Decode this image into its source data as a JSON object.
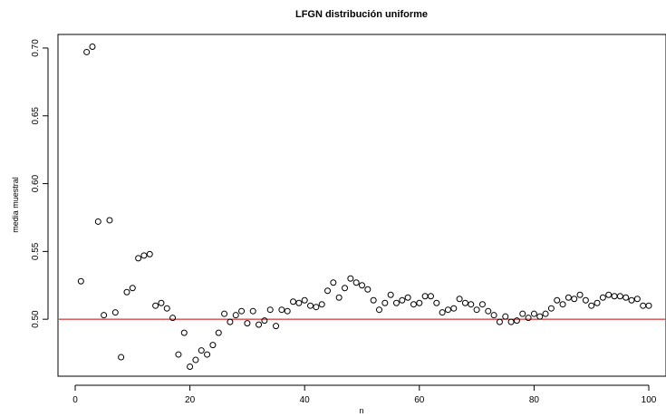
{
  "chart_data": {
    "type": "scatter",
    "title": "LFGN distribución uniforme",
    "xlabel": "n",
    "ylabel": "media muestral",
    "xlim": [
      -3,
      103
    ],
    "ylim": [
      0.458,
      0.71
    ],
    "x_ticks": [
      0,
      20,
      40,
      60,
      80,
      100
    ],
    "x_tick_labels": [
      "0",
      "20",
      "40",
      "60",
      "80",
      "100"
    ],
    "y_ticks": [
      0.5,
      0.55,
      0.6,
      0.65,
      0.7
    ],
    "y_tick_labels": [
      "0.50",
      "0.55",
      "0.60",
      "0.65",
      "0.70"
    ],
    "reference_line": {
      "y": 0.5,
      "color": "#cc0000"
    },
    "point_color": "#000000",
    "x": [
      1,
      2,
      3,
      4,
      5,
      6,
      7,
      8,
      9,
      10,
      11,
      12,
      13,
      14,
      15,
      16,
      17,
      18,
      19,
      20,
      21,
      22,
      23,
      24,
      25,
      26,
      27,
      28,
      29,
      30,
      31,
      32,
      33,
      34,
      35,
      36,
      37,
      38,
      39,
      40,
      41,
      42,
      43,
      44,
      45,
      46,
      47,
      48,
      49,
      50,
      51,
      52,
      53,
      54,
      55,
      56,
      57,
      58,
      59,
      60,
      61,
      62,
      63,
      64,
      65,
      66,
      67,
      68,
      69,
      70,
      71,
      72,
      73,
      74,
      75,
      76,
      77,
      78,
      79,
      80,
      81,
      82,
      83,
      84,
      85,
      86,
      87,
      88,
      89,
      90,
      91,
      92,
      93,
      94,
      95,
      96,
      97,
      98,
      99,
      100
    ],
    "y": [
      0.528,
      0.697,
      0.701,
      0.572,
      0.503,
      0.573,
      0.505,
      0.472,
      0.52,
      0.523,
      0.545,
      0.547,
      0.548,
      0.51,
      0.512,
      0.508,
      0.501,
      0.474,
      0.49,
      0.465,
      0.47,
      0.477,
      0.474,
      0.481,
      0.49,
      0.504,
      0.498,
      0.503,
      0.506,
      0.497,
      0.506,
      0.496,
      0.499,
      0.507,
      0.495,
      0.507,
      0.506,
      0.513,
      0.512,
      0.514,
      0.51,
      0.509,
      0.511,
      0.521,
      0.527,
      0.516,
      0.523,
      0.53,
      0.527,
      0.525,
      0.522,
      0.514,
      0.507,
      0.512,
      0.518,
      0.512,
      0.514,
      0.516,
      0.511,
      0.512,
      0.517,
      0.517,
      0.512,
      0.505,
      0.507,
      0.508,
      0.515,
      0.512,
      0.511,
      0.507,
      0.511,
      0.506,
      0.503,
      0.498,
      0.502,
      0.498,
      0.499,
      0.504,
      0.501,
      0.504,
      0.502,
      0.504,
      0.508,
      0.514,
      0.511,
      0.516,
      0.515,
      0.518,
      0.514,
      0.51,
      0.512,
      0.516,
      0.518,
      0.517,
      0.517,
      0.516,
      0.514,
      0.515,
      0.51,
      0.51
    ]
  }
}
